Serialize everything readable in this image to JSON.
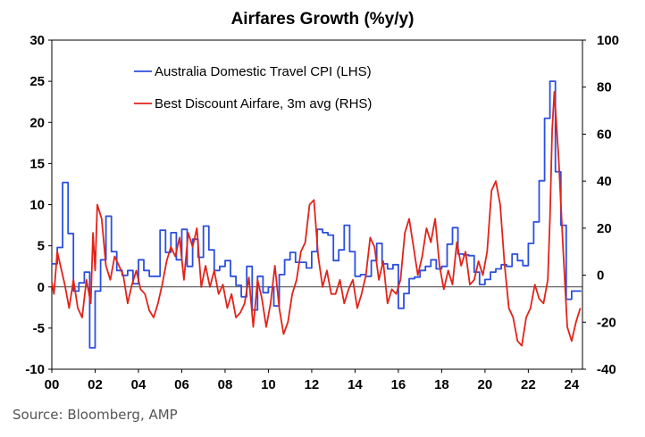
{
  "source": "Source: Bloomberg, AMP",
  "chart_data": {
    "type": "line",
    "title": "Airfares Growth (%y/y)",
    "x_range": [
      2000,
      2024.5
    ],
    "x_tick_labels": [
      "00",
      "02",
      "04",
      "06",
      "08",
      "10",
      "12",
      "14",
      "16",
      "18",
      "20",
      "22",
      "24"
    ],
    "x_tick_values": [
      2000,
      2002,
      2004,
      2006,
      2008,
      2010,
      2012,
      2014,
      2016,
      2018,
      2020,
      2022,
      2024
    ],
    "y_left": {
      "range": [
        -10,
        30
      ],
      "ticks": [
        -10,
        -5,
        0,
        5,
        10,
        15,
        20,
        25,
        30
      ],
      "tick_labels": [
        "-10",
        "-5",
        "0",
        "5",
        "10",
        "15",
        "20",
        "25",
        "30"
      ]
    },
    "y_right": {
      "range": [
        -40,
        100
      ],
      "ticks": [
        -40,
        -20,
        0,
        20,
        40,
        60,
        80,
        100
      ],
      "tick_labels": [
        "-40",
        "-20",
        "0",
        "20",
        "40",
        "60",
        "80",
        "100"
      ]
    },
    "grid": false,
    "legend": "top-left",
    "series": [
      {
        "name": "Australia Domestic Travel CPI (LHS)",
        "axis": "left",
        "color": "#2b4fe0",
        "step": true,
        "x": [
          2000.0,
          2000.25,
          2000.5,
          2000.75,
          2001.0,
          2001.25,
          2001.5,
          2001.75,
          2002.0,
          2002.25,
          2002.5,
          2002.75,
          2003.0,
          2003.25,
          2003.5,
          2003.75,
          2004.0,
          2004.25,
          2004.5,
          2004.75,
          2005.0,
          2005.25,
          2005.5,
          2005.75,
          2006.0,
          2006.25,
          2006.5,
          2006.75,
          2007.0,
          2007.25,
          2007.5,
          2007.75,
          2008.0,
          2008.25,
          2008.5,
          2008.75,
          2009.0,
          2009.25,
          2009.5,
          2009.75,
          2010.0,
          2010.25,
          2010.5,
          2010.75,
          2011.0,
          2011.25,
          2011.5,
          2011.75,
          2012.0,
          2012.25,
          2012.5,
          2012.75,
          2013.0,
          2013.25,
          2013.5,
          2013.75,
          2014.0,
          2014.25,
          2014.5,
          2014.75,
          2015.0,
          2015.25,
          2015.5,
          2015.75,
          2016.0,
          2016.25,
          2016.5,
          2016.75,
          2017.0,
          2017.25,
          2017.5,
          2017.75,
          2018.0,
          2018.25,
          2018.5,
          2018.75,
          2019.0,
          2019.25,
          2019.5,
          2019.75,
          2020.0,
          2020.25,
          2020.5,
          2020.75,
          2021.0,
          2021.25,
          2021.5,
          2021.75,
          2022.0,
          2022.25,
          2022.5,
          2022.75,
          2023.0,
          2023.25,
          2023.5,
          2023.75,
          2024.0,
          2024.25
        ],
        "y": [
          2.8,
          4.8,
          12.7,
          6.5,
          -0.5,
          0.5,
          1.8,
          -7.4,
          -0.5,
          3.3,
          8.6,
          4.3,
          2.0,
          1.4,
          2.0,
          0.4,
          3.3,
          2.0,
          1.3,
          1.3,
          6.9,
          4.2,
          6.6,
          3.3,
          7.0,
          2.5,
          5.8,
          3.6,
          7.4,
          4.5,
          2.0,
          2.5,
          3.2,
          1.3,
          0.2,
          -1.2,
          2.5,
          -2.8,
          1.3,
          -0.7,
          0.0,
          -2.3,
          1.5,
          3.3,
          4.2,
          3.0,
          3.0,
          2.3,
          4.3,
          7.0,
          6.6,
          6.3,
          3.2,
          4.5,
          7.5,
          4.3,
          1.3,
          1.5,
          1.3,
          3.2,
          5.3,
          2.8,
          2.2,
          2.7,
          -2.6,
          -0.8,
          1.0,
          1.2,
          2.0,
          2.5,
          3.3,
          2.2,
          2.5,
          5.2,
          7.2,
          4.0,
          3.9,
          3.8,
          1.8,
          0.3,
          0.9,
          1.8,
          2.2,
          2.7,
          2.5,
          4.0,
          3.2,
          2.6,
          5.3,
          7.9,
          12.9,
          20.5,
          25.0,
          14.0,
          7.5,
          -1.5,
          -0.5,
          -0.5
        ]
      },
      {
        "name": "Best Discount Airfare, 3m avg (RHS)",
        "axis": "right",
        "color": "#e2231a",
        "step": false,
        "x": [
          2000.0,
          2000.1,
          2000.25,
          2000.4,
          2000.6,
          2000.8,
          2001.0,
          2001.2,
          2001.4,
          2001.6,
          2001.8,
          2001.9,
          2002.0,
          2002.1,
          2002.3,
          2002.5,
          2002.7,
          2002.9,
          2003.1,
          2003.3,
          2003.5,
          2003.7,
          2003.9,
          2004.1,
          2004.3,
          2004.5,
          2004.7,
          2004.9,
          2005.1,
          2005.3,
          2005.5,
          2005.7,
          2005.9,
          2006.1,
          2006.3,
          2006.5,
          2006.7,
          2006.9,
          2007.1,
          2007.3,
          2007.5,
          2007.7,
          2007.9,
          2008.1,
          2008.3,
          2008.5,
          2008.7,
          2008.9,
          2009.1,
          2009.3,
          2009.5,
          2009.7,
          2009.9,
          2010.1,
          2010.3,
          2010.5,
          2010.7,
          2010.9,
          2011.1,
          2011.3,
          2011.5,
          2011.7,
          2011.9,
          2012.1,
          2012.3,
          2012.5,
          2012.7,
          2012.9,
          2013.1,
          2013.3,
          2013.5,
          2013.7,
          2013.9,
          2014.1,
          2014.3,
          2014.5,
          2014.7,
          2014.9,
          2015.1,
          2015.3,
          2015.5,
          2015.7,
          2015.9,
          2016.1,
          2016.3,
          2016.5,
          2016.7,
          2016.9,
          2017.1,
          2017.3,
          2017.5,
          2017.7,
          2017.9,
          2018.1,
          2018.3,
          2018.5,
          2018.7,
          2018.9,
          2019.1,
          2019.3,
          2019.5,
          2019.7,
          2019.9,
          2020.1,
          2020.3,
          2020.5,
          2020.7,
          2020.9,
          2021.1,
          2021.3,
          2021.5,
          2021.7,
          2021.9,
          2022.1,
          2022.3,
          2022.5,
          2022.7,
          2022.9,
          2023.0,
          2023.1,
          2023.2,
          2023.4,
          2023.6,
          2023.8,
          2024.0,
          2024.2,
          2024.4
        ],
        "y": [
          -3,
          -8,
          10,
          4,
          -4,
          -14,
          -2,
          -14,
          -18,
          -2,
          -12,
          18,
          2,
          30,
          24,
          4,
          -2,
          8,
          4,
          0,
          -12,
          -4,
          2,
          -6,
          -8,
          -15,
          -18,
          -12,
          -4,
          6,
          12,
          8,
          16,
          -2,
          18,
          12,
          20,
          -5,
          4,
          -5,
          2,
          -8,
          -4,
          -14,
          -8,
          -18,
          -16,
          -12,
          -1,
          -22,
          -2,
          -10,
          -22,
          -12,
          4,
          -14,
          -25,
          -20,
          -8,
          -2,
          10,
          14,
          30,
          32,
          8,
          -5,
          2,
          -8,
          -8,
          -2,
          -12,
          -6,
          -2,
          -14,
          -8,
          0,
          16,
          12,
          -2,
          6,
          -12,
          -6,
          -8,
          -2,
          18,
          24,
          12,
          0,
          8,
          20,
          14,
          24,
          4,
          -6,
          2,
          -4,
          14,
          4,
          10,
          -4,
          -2,
          6,
          0,
          10,
          36,
          40,
          30,
          5,
          -14,
          -18,
          -28,
          -30,
          -18,
          -14,
          -4,
          -10,
          -12,
          -2,
          24,
          62,
          78,
          50,
          12,
          -22,
          -28,
          -20,
          -14
        ]
      }
    ]
  }
}
